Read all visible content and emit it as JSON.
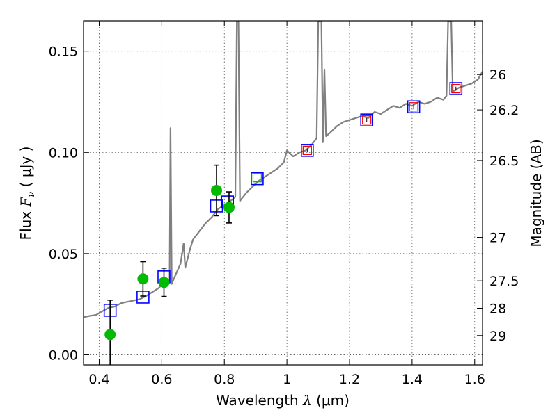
{
  "chart_data": {
    "type": "scatter",
    "xlabel": {
      "prefix": "Wavelength ",
      "symbol": "λ",
      "unit": " (μm)"
    },
    "ylabel": {
      "prefix": "Flux ",
      "symbol": "F",
      "subscript": "ν",
      "unit": " ( μJy )"
    },
    "y2label": "Magnitude (AB)",
    "xlim": [
      0.35,
      1.625
    ],
    "ylim": [
      -0.005,
      0.165
    ],
    "grid": true,
    "x_ticks": [
      {
        "value": 0.4,
        "label": "0.4"
      },
      {
        "value": 0.6,
        "label": "0.6"
      },
      {
        "value": 0.8,
        "label": "0.8"
      },
      {
        "value": 1.0,
        "label": "1"
      },
      {
        "value": 1.2,
        "label": "1.2"
      },
      {
        "value": 1.4,
        "label": "1.4"
      },
      {
        "value": 1.6,
        "label": "1.6"
      }
    ],
    "y_ticks": [
      {
        "value": 0.0,
        "label": "0.00"
      },
      {
        "value": 0.05,
        "label": "0.05"
      },
      {
        "value": 0.1,
        "label": "0.10"
      },
      {
        "value": 0.15,
        "label": "0.15"
      }
    ],
    "y2_ticks": [
      {
        "flux": 0.1385,
        "label": "26"
      },
      {
        "flux": 0.121,
        "label": "26.2"
      },
      {
        "flux": 0.096,
        "label": "26.5"
      },
      {
        "flux": 0.058,
        "label": "27"
      },
      {
        "flux": 0.0365,
        "label": "27.5"
      },
      {
        "flux": 0.023,
        "label": "28"
      },
      {
        "flux": 0.0095,
        "label": "29"
      }
    ],
    "series": [
      {
        "name": "model-spectrum",
        "kind": "line",
        "color": "#808080",
        "points": [
          [
            0.35,
            0.0186
          ],
          [
            0.37,
            0.0192
          ],
          [
            0.39,
            0.0197
          ],
          [
            0.41,
            0.0215
          ],
          [
            0.43,
            0.0232
          ],
          [
            0.45,
            0.0238
          ],
          [
            0.47,
            0.0255
          ],
          [
            0.49,
            0.0262
          ],
          [
            0.51,
            0.0268
          ],
          [
            0.53,
            0.0275
          ],
          [
            0.55,
            0.029
          ],
          [
            0.57,
            0.031
          ],
          [
            0.59,
            0.033
          ],
          [
            0.61,
            0.036
          ],
          [
            0.625,
            0.037
          ],
          [
            0.628,
            0.112
          ],
          [
            0.632,
            0.035
          ],
          [
            0.64,
            0.038
          ],
          [
            0.66,
            0.045
          ],
          [
            0.67,
            0.055
          ],
          [
            0.675,
            0.043
          ],
          [
            0.69,
            0.052
          ],
          [
            0.7,
            0.057
          ],
          [
            0.72,
            0.061
          ],
          [
            0.74,
            0.065
          ],
          [
            0.76,
            0.068
          ],
          [
            0.78,
            0.072
          ],
          [
            0.8,
            0.074
          ],
          [
            0.82,
            0.076
          ],
          [
            0.835,
            0.078
          ],
          [
            0.84,
            0.165
          ],
          [
            0.845,
            0.165
          ],
          [
            0.85,
            0.076
          ],
          [
            0.87,
            0.08
          ],
          [
            0.89,
            0.083
          ],
          [
            0.91,
            0.086
          ],
          [
            0.93,
            0.088
          ],
          [
            0.95,
            0.09
          ],
          [
            0.97,
            0.092
          ],
          [
            0.99,
            0.095
          ],
          [
            1.0,
            0.101
          ],
          [
            1.02,
            0.098
          ],
          [
            1.04,
            0.1
          ],
          [
            1.06,
            0.101
          ],
          [
            1.08,
            0.104
          ],
          [
            1.095,
            0.107
          ],
          [
            1.1,
            0.165
          ],
          [
            1.11,
            0.165
          ],
          [
            1.115,
            0.105
          ],
          [
            1.12,
            0.141
          ],
          [
            1.125,
            0.108
          ],
          [
            1.14,
            0.11
          ],
          [
            1.16,
            0.113
          ],
          [
            1.18,
            0.115
          ],
          [
            1.2,
            0.116
          ],
          [
            1.22,
            0.117
          ],
          [
            1.24,
            0.118
          ],
          [
            1.26,
            0.117
          ],
          [
            1.28,
            0.12
          ],
          [
            1.3,
            0.119
          ],
          [
            1.32,
            0.121
          ],
          [
            1.34,
            0.123
          ],
          [
            1.36,
            0.122
          ],
          [
            1.38,
            0.124
          ],
          [
            1.4,
            0.123
          ],
          [
            1.42,
            0.125
          ],
          [
            1.44,
            0.124
          ],
          [
            1.46,
            0.125
          ],
          [
            1.48,
            0.127
          ],
          [
            1.5,
            0.126
          ],
          [
            1.51,
            0.128
          ],
          [
            1.515,
            0.165
          ],
          [
            1.525,
            0.165
          ],
          [
            1.53,
            0.13
          ],
          [
            1.55,
            0.132
          ],
          [
            1.57,
            0.133
          ],
          [
            1.59,
            0.134
          ],
          [
            1.61,
            0.136
          ],
          [
            1.625,
            0.14
          ]
        ]
      },
      {
        "name": "model-synthetic-photometry",
        "kind": "open-square",
        "color": "#0000ff",
        "points": [
          [
            0.435,
            0.022
          ],
          [
            0.54,
            0.0285
          ],
          [
            0.607,
            0.0385
          ],
          [
            0.775,
            0.0735
          ],
          [
            0.81,
            0.0755
          ],
          [
            0.905,
            0.087
          ],
          [
            1.065,
            0.101
          ],
          [
            1.255,
            0.116
          ],
          [
            1.405,
            0.1225
          ],
          [
            1.54,
            0.1315
          ]
        ]
      },
      {
        "name": "observed-photometry",
        "kind": "filled-circle-errorbar",
        "color": "#00bb00",
        "points": [
          {
            "x": 0.435,
            "y": 0.01,
            "err": 0.017
          },
          {
            "x": 0.54,
            "y": 0.0375,
            "err": 0.0085
          },
          {
            "x": 0.607,
            "y": 0.0358,
            "err": 0.007
          },
          {
            "x": 0.775,
            "y": 0.0812,
            "err": 0.0125
          },
          {
            "x": 0.815,
            "y": 0.0728,
            "err": 0.0077
          }
        ]
      },
      {
        "name": "observed-nir-photometry",
        "kind": "small-open-square-errorbar",
        "color": "#ff0000",
        "points": [
          {
            "x": 1.065,
            "y": 0.101,
            "err": 0.001
          },
          {
            "x": 1.255,
            "y": 0.116,
            "err": 0.001
          },
          {
            "x": 1.405,
            "y": 0.1225,
            "err": 0.0012
          },
          {
            "x": 1.54,
            "y": 0.1315,
            "err": 0.001
          }
        ]
      },
      {
        "name": "observed-z-band",
        "kind": "small-open-square",
        "color": "#00bb00",
        "points": [
          [
            0.905,
            0.0875
          ]
        ]
      }
    ]
  }
}
